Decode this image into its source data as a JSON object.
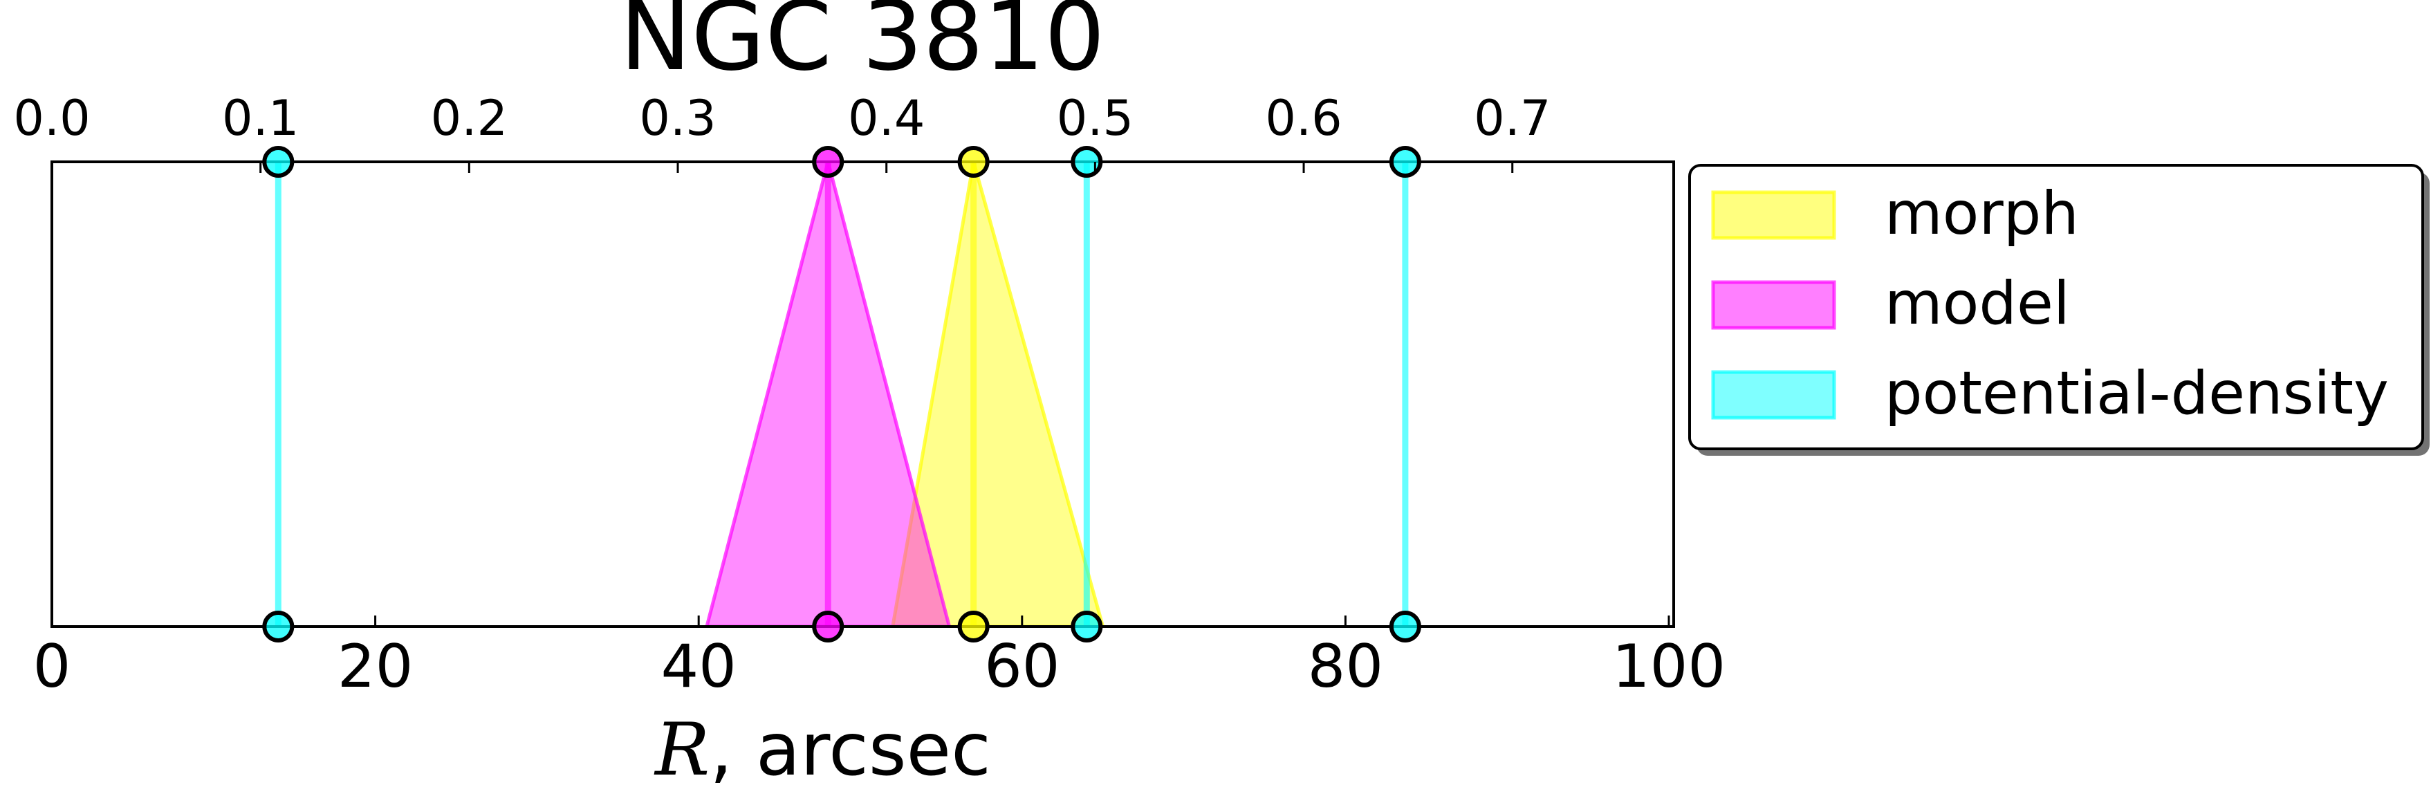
{
  "chart_data": {
    "type": "area",
    "title": "NGC 3810",
    "xlabel_italic": "R",
    "xlabel_rest": ", arcsec",
    "xlim": [
      0,
      100.3
    ],
    "xticks": [
      "0",
      "20",
      "40",
      "60",
      "80",
      "100"
    ],
    "xtick_values": [
      0,
      20,
      40,
      60,
      80,
      100
    ],
    "top_xticks": [
      "0.0",
      "0.1",
      "0.2",
      "0.3",
      "0.4",
      "0.5",
      "0.6",
      "0.7"
    ],
    "top_xtick_values": [
      0,
      0.1,
      0.2,
      0.3,
      0.4,
      0.5,
      0.6,
      0.7
    ],
    "top_axis_scale": 0.00775,
    "legend_position": "outside-right",
    "grid": false,
    "series": [
      {
        "name": "morph",
        "color": "#ffff00",
        "triangle": {
          "left": 52,
          "peak": 57,
          "right": 65
        },
        "lines": [
          57
        ]
      },
      {
        "name": "model",
        "color": "#ff00ff",
        "triangle": {
          "left": 40.5,
          "peak": 48,
          "right": 55.5
        },
        "lines": [
          48
        ]
      },
      {
        "name": "potential-density",
        "color": "#00ffff",
        "lines": [
          14,
          64,
          83.7
        ]
      }
    ]
  }
}
